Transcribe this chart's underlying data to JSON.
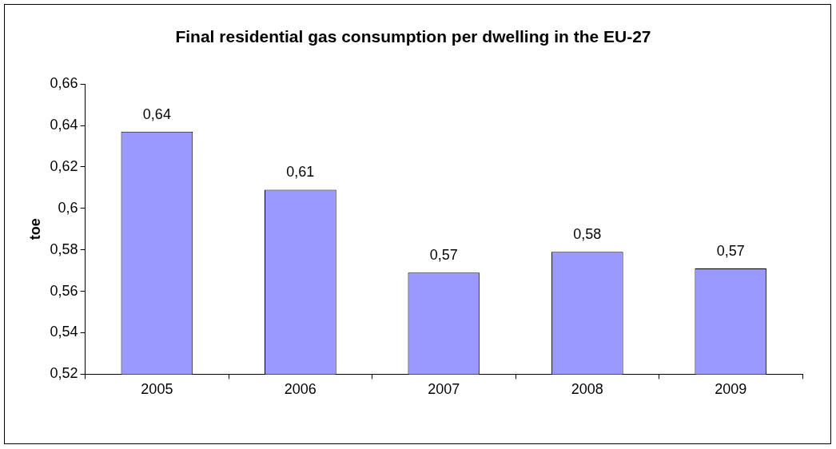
{
  "chart_data": {
    "type": "bar",
    "title": "Final residential gas consumption per dwelling in the EU-27",
    "ylabel": "toe",
    "categories": [
      "2005",
      "2006",
      "2007",
      "2008",
      "2009"
    ],
    "values": [
      0.637,
      0.609,
      0.569,
      0.579,
      0.571
    ],
    "value_labels": [
      "0,64",
      "0,61",
      "0,57",
      "0,58",
      "0,57"
    ],
    "color": "#9999ff",
    "ylim": [
      0.52,
      0.66
    ],
    "yticks": [
      {
        "value": 0.52,
        "label": "0,52"
      },
      {
        "value": 0.54,
        "label": "0,54"
      },
      {
        "value": 0.56,
        "label": "0,56"
      },
      {
        "value": 0.58,
        "label": "0,58"
      },
      {
        "value": 0.6,
        "label": "0,6"
      },
      {
        "value": 0.62,
        "label": "0,62"
      },
      {
        "value": 0.64,
        "label": "0,64"
      },
      {
        "value": 0.66,
        "label": "0,66"
      }
    ],
    "grid": false,
    "legend": false
  }
}
